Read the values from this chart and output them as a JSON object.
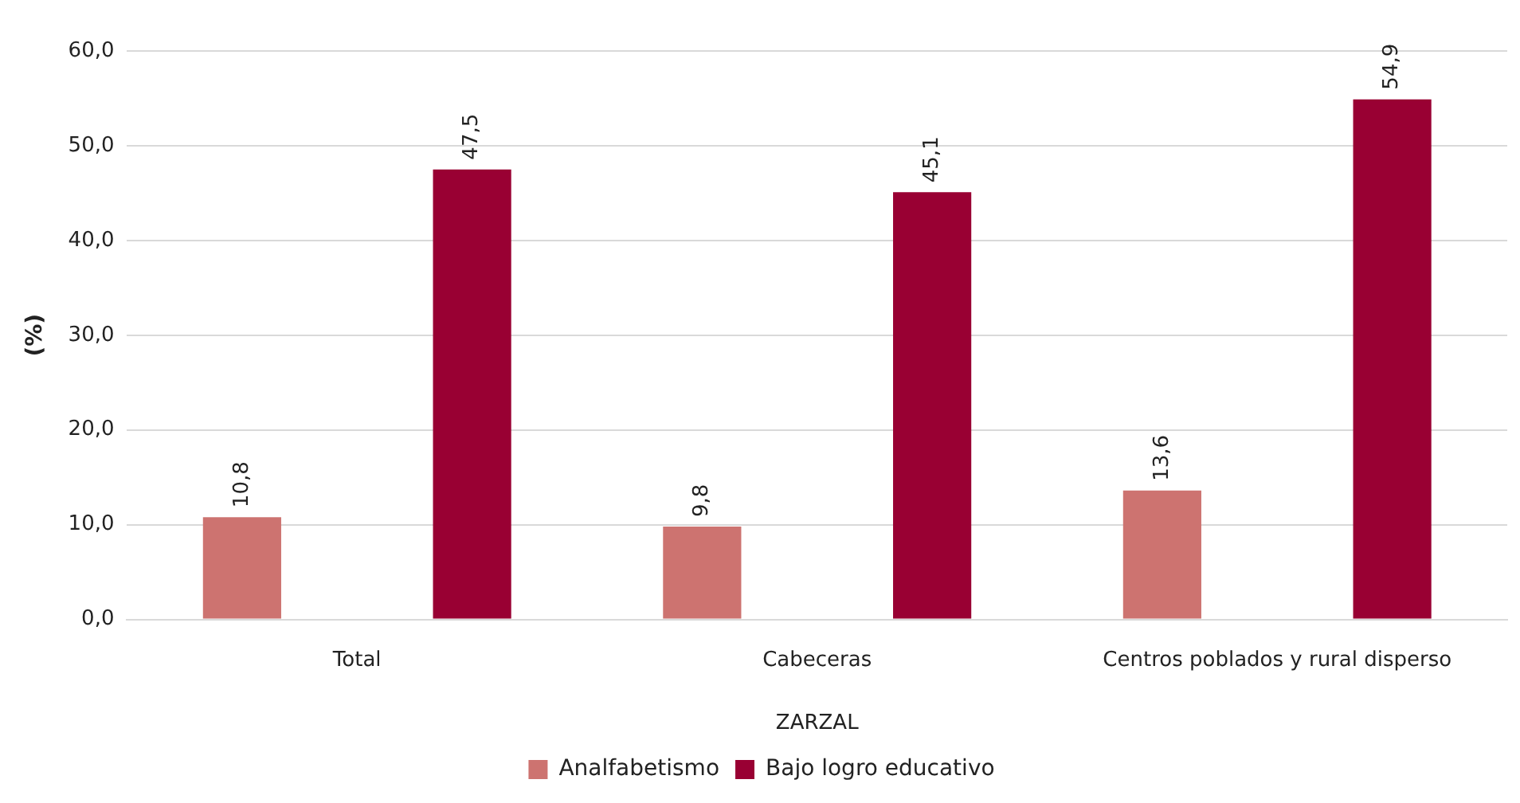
{
  "chart_data": {
    "type": "bar",
    "xlabel": "ZARZAL",
    "ylabel": "(%)",
    "categories": [
      "Total",
      "Cabeceras",
      "Centros poblados y rural disperso"
    ],
    "series": [
      {
        "name": "Analfabetismo",
        "color": "#cd7370",
        "values": [
          10.8,
          9.8,
          13.6
        ],
        "value_labels": [
          "10,8",
          "9,8",
          "13,6"
        ]
      },
      {
        "name": "Bajo logro educativo",
        "color": "#990033",
        "values": [
          47.5,
          45.1,
          54.9
        ],
        "value_labels": [
          "47,5",
          "45,1",
          "54,9"
        ]
      }
    ],
    "ylim": [
      0,
      60
    ],
    "yticks": [
      {
        "value": 0,
        "label": "0,0"
      },
      {
        "value": 10,
        "label": "10,0"
      },
      {
        "value": 20,
        "label": "20,0"
      },
      {
        "value": 30,
        "label": "30,0"
      },
      {
        "value": 40,
        "label": "40,0"
      },
      {
        "value": 50,
        "label": "50,0"
      },
      {
        "value": 60,
        "label": "60,0"
      }
    ],
    "grid": "y",
    "legend": "bottom"
  }
}
